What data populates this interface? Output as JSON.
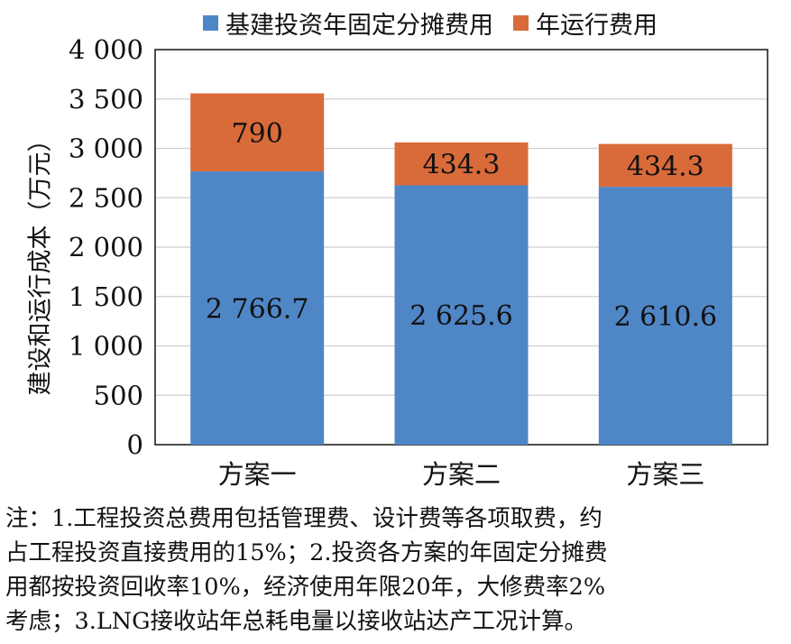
{
  "chart_data": {
    "type": "bar",
    "stacked": true,
    "categories": [
      "方案一",
      "方案二",
      "方案三"
    ],
    "series": [
      {
        "name": "基建投资年固定分摊费用",
        "values": [
          2766.7,
          2625.6,
          2610.6
        ],
        "labels": [
          "2 766.7",
          "2 625.6",
          "2 610.6"
        ],
        "color": "#4f86c6"
      },
      {
        "name": "年运行费用",
        "values": [
          790,
          434.3,
          434.3
        ],
        "labels": [
          "790",
          "434.3",
          "434.3"
        ],
        "color": "#d96a3a"
      }
    ],
    "ylabel": "建设和运行成本（万元）",
    "ylim": [
      0,
      4000
    ],
    "yticks": [
      0,
      500,
      1000,
      1500,
      2000,
      2500,
      3000,
      3500,
      4000
    ],
    "ytick_labels": [
      "0",
      "500",
      "1 000",
      "1 500",
      "2 000",
      "2 500",
      "3 000",
      "3 500",
      "4 000"
    ],
    "legend": "top",
    "grid": true
  },
  "note": {
    "lines": [
      "注：1.工程投资总费用包括管理费、设计费等各项取费，约",
      "占工程投资直接费用的15%；2.投资各方案的年固定分摊费",
      "用都按投资回收率10%，经济使用年限20年，大修费率2%",
      "考虑；3.LNG接收站年总耗电量以接收站达产工况计算。"
    ]
  }
}
